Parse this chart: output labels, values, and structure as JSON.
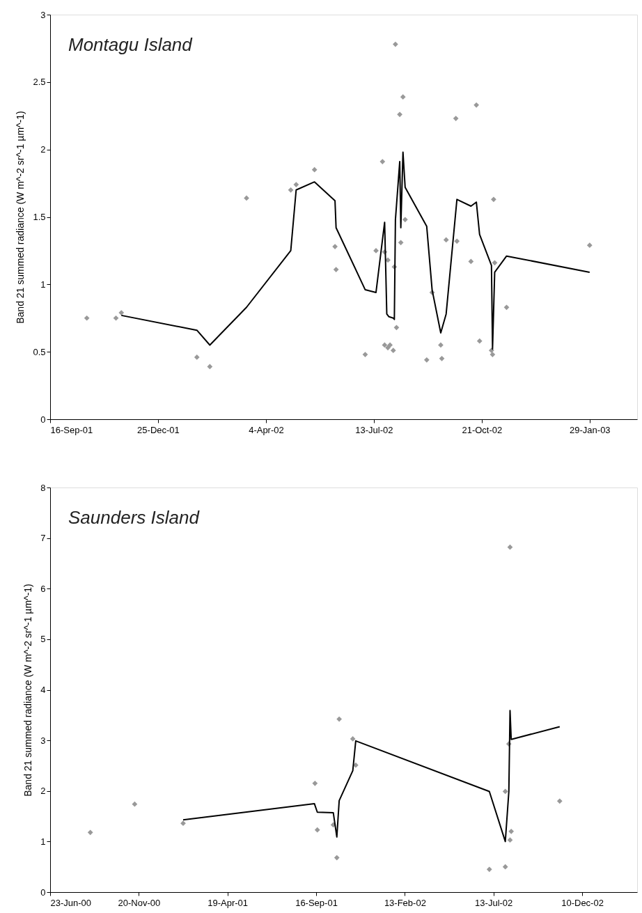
{
  "chart_data": [
    {
      "type": "scatter",
      "title": "Montagu Island",
      "ylabel": "Band 21 summed radiance (W m^-2 sr^-1 µm^-1)",
      "xlim": [
        "2001-09-16",
        "2003-03-14"
      ],
      "ylim": [
        0,
        3
      ],
      "yticks": [
        0,
        0.5,
        1,
        1.5,
        2,
        2.5,
        3
      ],
      "xticks": [
        {
          "value": "2001-09-16",
          "label": "16-Sep-01"
        },
        {
          "value": "2001-12-25",
          "label": "25-Dec-01"
        },
        {
          "value": "2002-04-04",
          "label": "4-Apr-02"
        },
        {
          "value": "2002-07-13",
          "label": "13-Jul-02"
        },
        {
          "value": "2002-10-21",
          "label": "21-Oct-02"
        },
        {
          "value": "2003-01-29",
          "label": "29-Jan-03"
        }
      ],
      "grid": false,
      "series": [
        {
          "marker": "diamond",
          "color": "#999999",
          "x": [
            "2001-10-20",
            "2001-11-16",
            "2001-11-21",
            "2002-01-30",
            "2002-02-11",
            "2002-03-17",
            "2002-04-27",
            "2002-05-02",
            "2002-05-19",
            "2002-06-07",
            "2002-06-08",
            "2002-07-05",
            "2002-07-15",
            "2002-07-21",
            "2002-07-23",
            "2002-07-23",
            "2002-07-26",
            "2002-07-26",
            "2002-07-28",
            "2002-07-31",
            "2002-08-01",
            "2002-08-02",
            "2002-08-03",
            "2002-08-06",
            "2002-08-07",
            "2002-08-09",
            "2002-08-11",
            "2002-08-31",
            "2002-09-05",
            "2002-09-13",
            "2002-09-14",
            "2002-09-18",
            "2002-09-27",
            "2002-09-28",
            "2002-10-11",
            "2002-10-16",
            "2002-10-19",
            "2002-10-30",
            "2002-10-31",
            "2002-11-01",
            "2002-11-02",
            "2002-11-13",
            "2003-01-29"
          ],
          "values": [
            0.75,
            0.75,
            0.79,
            0.46,
            0.39,
            1.64,
            1.7,
            1.74,
            1.85,
            1.28,
            1.11,
            0.48,
            1.25,
            1.91,
            1.24,
            0.55,
            1.18,
            0.53,
            0.55,
            0.51,
            1.13,
            2.78,
            0.68,
            2.26,
            1.31,
            2.39,
            1.48,
            0.44,
            0.94,
            0.55,
            0.45,
            1.33,
            2.23,
            1.32,
            1.17,
            2.33,
            0.58,
            0.51,
            0.48,
            1.63,
            1.16,
            0.83,
            1.29
          ]
        },
        {
          "type": "line",
          "marker": "none",
          "line_style": "solid",
          "color": "#000000",
          "x": [
            "2001-11-21",
            "2002-01-30",
            "2002-02-11",
            "2002-03-17",
            "2002-04-27",
            "2002-05-02",
            "2002-05-19",
            "2002-06-07",
            "2002-06-08",
            "2002-07-05",
            "2002-07-15",
            "2002-07-23",
            "2002-07-25",
            "2002-07-27",
            "2002-07-31",
            "2002-08-01",
            "2002-08-02",
            "2002-08-06",
            "2002-08-07",
            "2002-08-09",
            "2002-08-11",
            "2002-08-31",
            "2002-09-05",
            "2002-09-13",
            "2002-09-18",
            "2002-09-28",
            "2002-10-11",
            "2002-10-16",
            "2002-10-19",
            "2002-10-30",
            "2002-10-31",
            "2002-11-02",
            "2002-11-13",
            "2003-01-29"
          ],
          "values": [
            0.77,
            0.66,
            0.55,
            0.83,
            1.25,
            1.7,
            1.76,
            1.62,
            1.42,
            0.96,
            0.94,
            1.46,
            0.78,
            0.76,
            0.75,
            0.74,
            1.48,
            1.91,
            1.42,
            1.98,
            1.72,
            1.43,
            0.96,
            0.64,
            0.78,
            1.63,
            1.58,
            1.61,
            1.37,
            1.14,
            0.52,
            1.09,
            1.21,
            1.09
          ]
        }
      ]
    },
    {
      "type": "scatter",
      "title": "Saunders Island",
      "ylabel": "Band 21 summed radiance (W m^-2 sr^-1 µm^-1)",
      "xlim": [
        "2000-06-23",
        "2003-03-13"
      ],
      "ylim": [
        0,
        8
      ],
      "yticks": [
        0,
        1,
        2,
        3,
        4,
        5,
        6,
        7,
        8
      ],
      "xticks": [
        {
          "value": "2000-06-23",
          "label": "23-Jun-00"
        },
        {
          "value": "2000-11-20",
          "label": "20-Nov-00"
        },
        {
          "value": "2001-04-19",
          "label": "19-Apr-01"
        },
        {
          "value": "2001-09-16",
          "label": "16-Sep-01"
        },
        {
          "value": "2002-02-13",
          "label": "13-Feb-02"
        },
        {
          "value": "2002-07-13",
          "label": "13-Jul-02"
        },
        {
          "value": "2002-12-10",
          "label": "10-Dec-02"
        }
      ],
      "grid": false,
      "series": [
        {
          "marker": "diamond",
          "color": "#999999",
          "x": [
            "2000-08-30",
            "2000-11-13",
            "2001-02-03",
            "2001-09-14",
            "2001-09-18",
            "2001-10-15",
            "2001-10-21",
            "2001-10-25",
            "2001-11-17",
            "2001-11-22",
            "2002-07-06",
            "2002-08-02",
            "2002-08-02",
            "2002-08-08",
            "2002-08-10",
            "2002-08-12",
            "2002-08-10",
            "2002-11-02"
          ],
          "values": [
            1.18,
            1.74,
            1.36,
            2.15,
            1.23,
            1.33,
            0.68,
            3.42,
            3.03,
            2.51,
            0.45,
            1.99,
            0.5,
            2.93,
            6.82,
            1.2,
            1.03,
            1.8
          ]
        },
        {
          "type": "line",
          "marker": "none",
          "line_style": "solid",
          "color": "#000000",
          "x": [
            "2001-02-03",
            "2001-09-13",
            "2001-09-18",
            "2001-10-15",
            "2001-10-21",
            "2001-10-25",
            "2001-11-17",
            "2001-11-22",
            "2002-07-06",
            "2002-08-02",
            "2002-08-08",
            "2002-08-10",
            "2002-08-12",
            "2002-11-02"
          ],
          "values": [
            1.43,
            1.75,
            1.58,
            1.57,
            1.09,
            1.81,
            2.4,
            2.99,
            1.99,
            1.0,
            1.99,
            3.59,
            3.02,
            3.27
          ]
        }
      ]
    }
  ]
}
